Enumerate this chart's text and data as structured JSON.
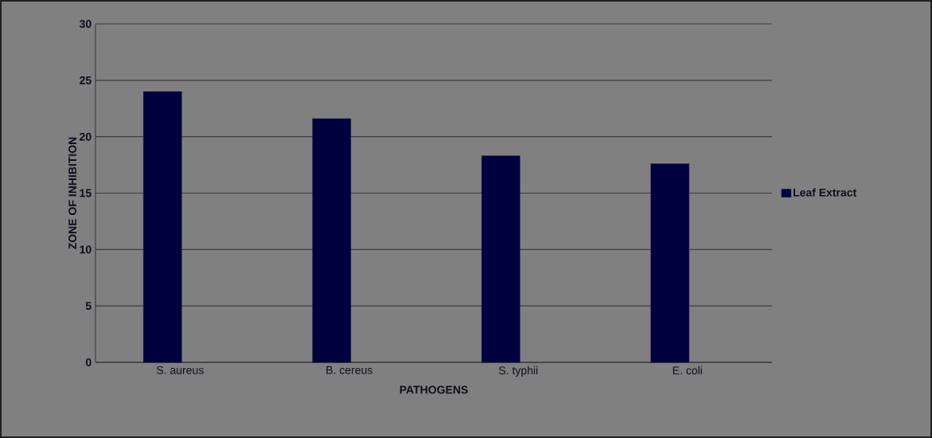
{
  "chart_data": {
    "type": "bar",
    "xlabel": "PATHOGENS",
    "ylabel": "ZONE OF INHIBITION",
    "categories": [
      "S. aureus",
      "B. cereus",
      "S. typhii",
      "E. coli"
    ],
    "series": [
      {
        "name": "Leaf Extract",
        "color": "#00003f",
        "values": [
          24.0,
          21.6,
          18.3,
          17.6
        ]
      }
    ],
    "ylim": [
      0,
      30
    ],
    "yticks": [
      0,
      5,
      10,
      15,
      20,
      25,
      30
    ],
    "grid": "y",
    "legend": "right"
  }
}
